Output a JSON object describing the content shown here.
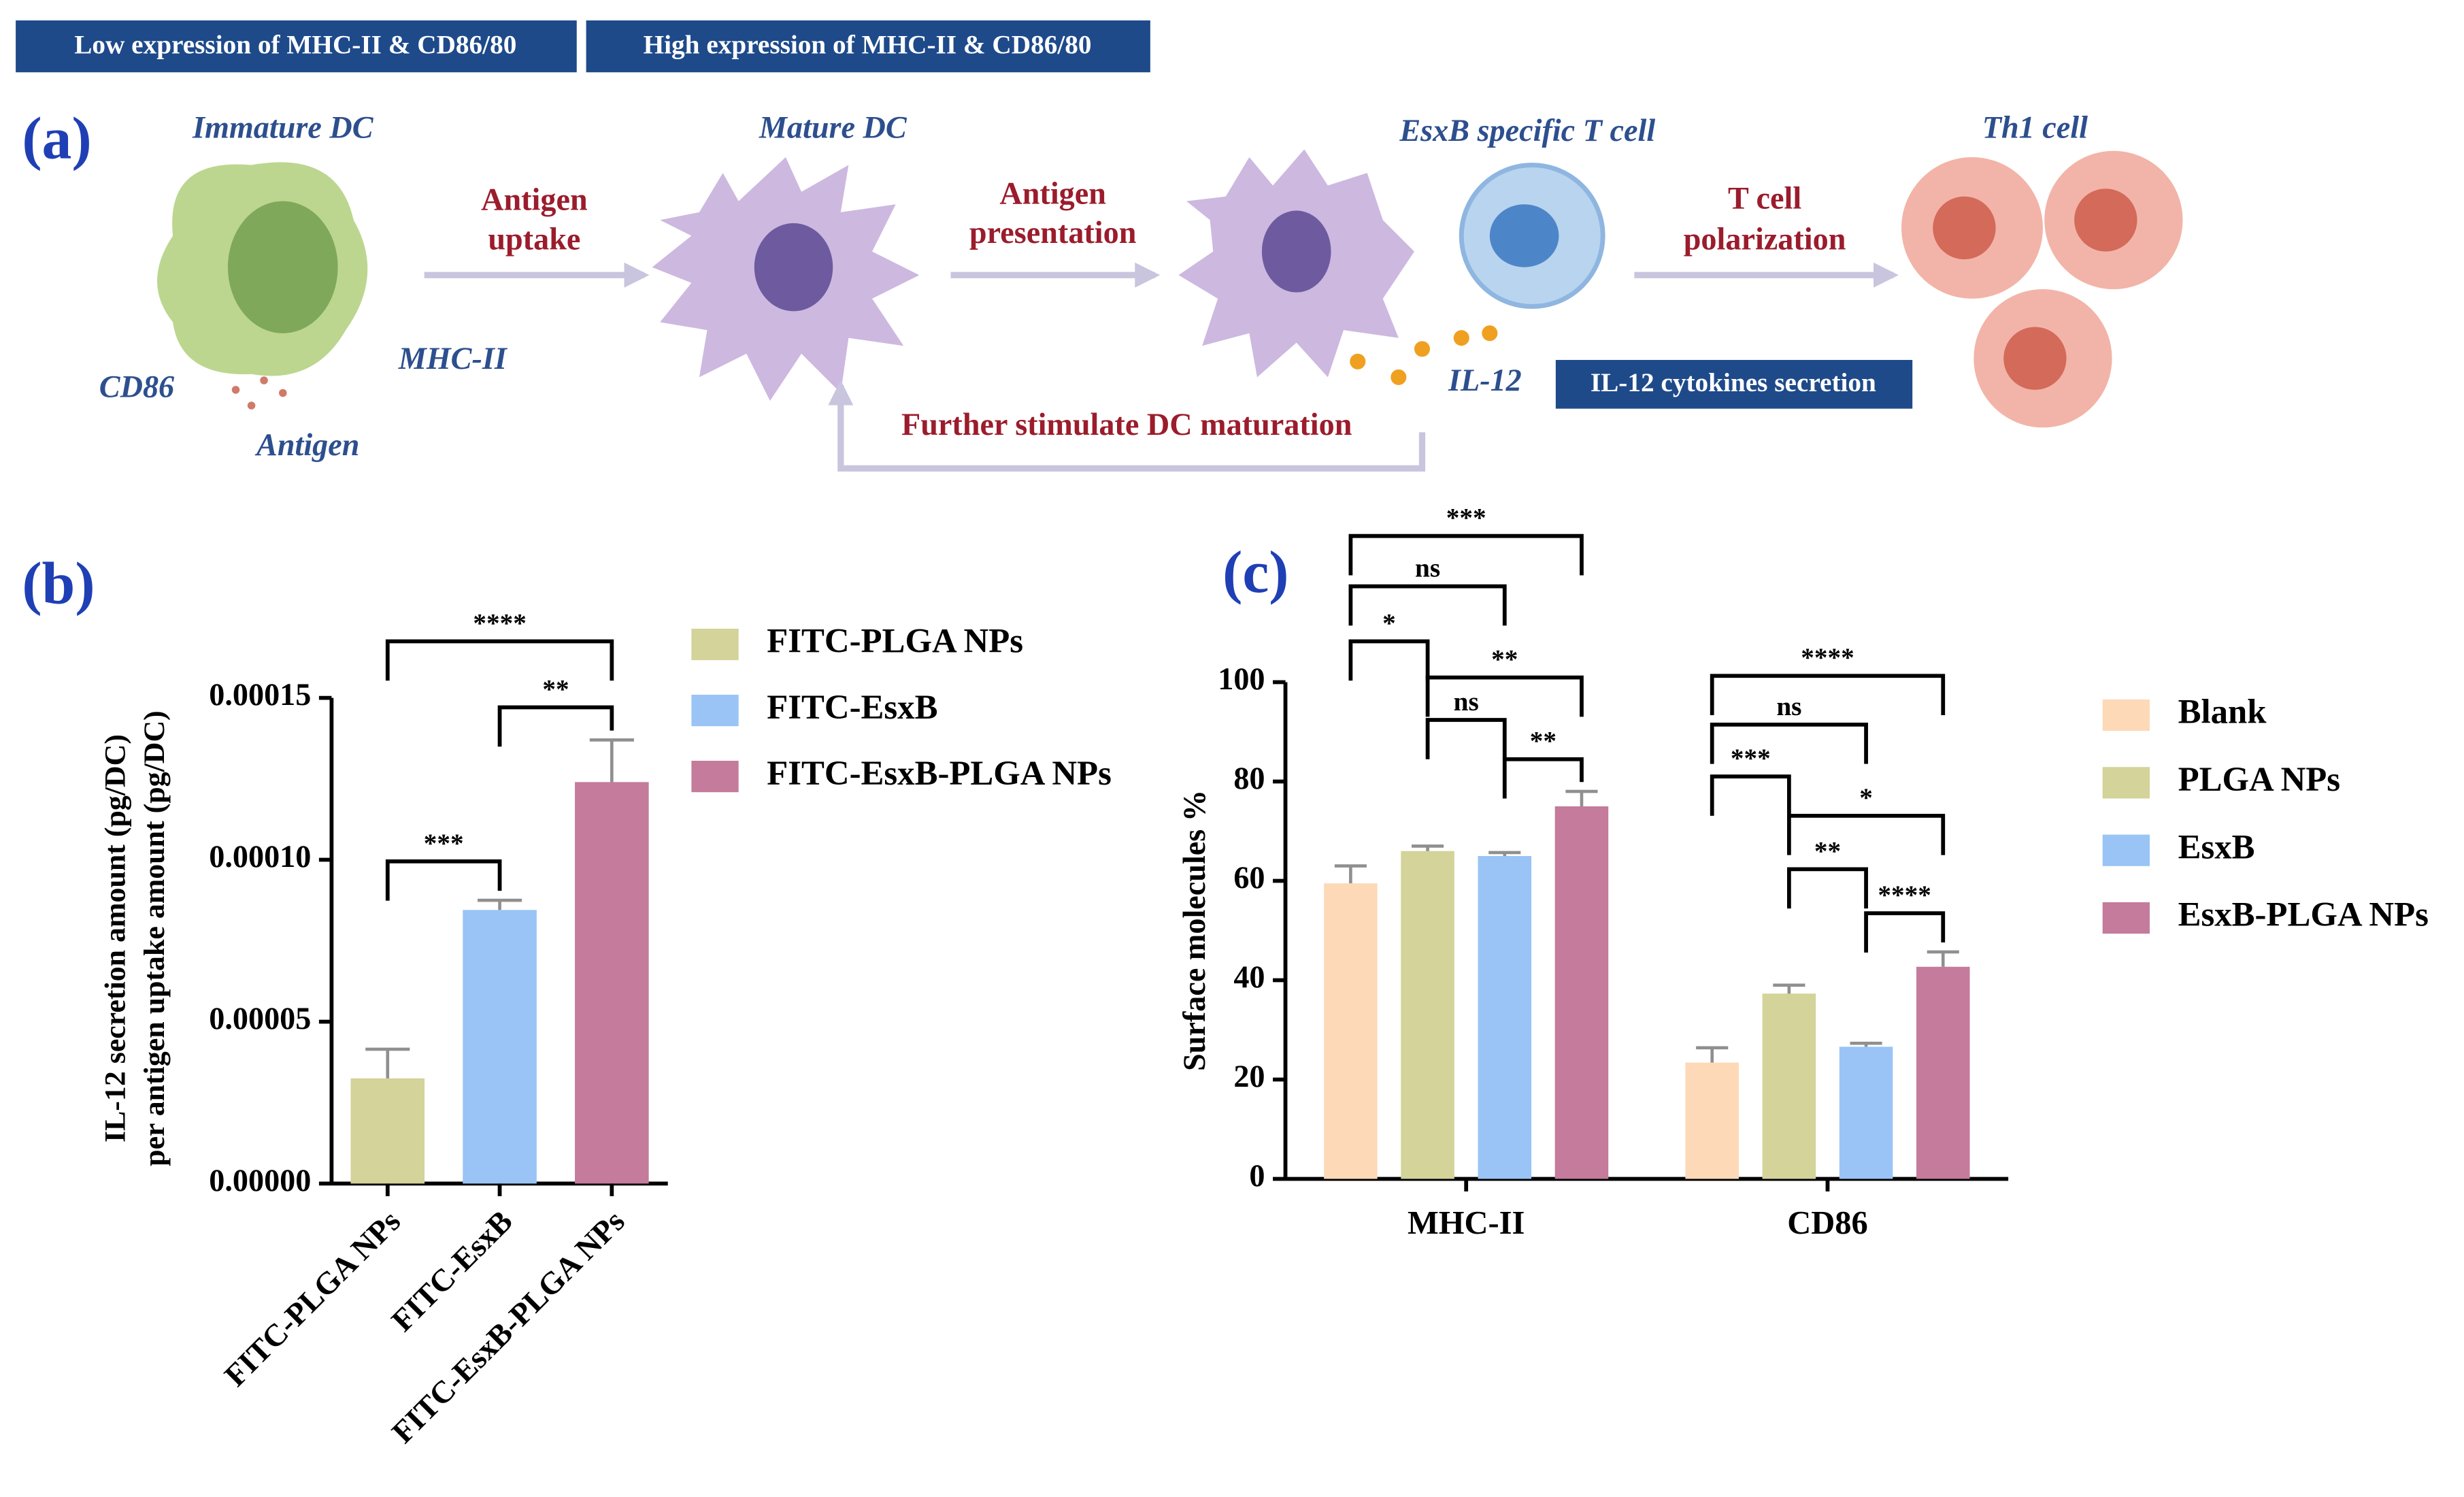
{
  "diagram": {
    "header_boxes": [
      "Low expression of  MHC-II & CD86/80",
      "High expression of  MHC-II & CD86/80"
    ],
    "panel": "(a)",
    "cells": [
      "Immature DC",
      "Mature DC",
      "EsxB specific T cell",
      "Th1 cell"
    ],
    "steps": [
      [
        "Antigen",
        "uptake"
      ],
      [
        "Antigen",
        "presentation"
      ],
      [
        "T cell",
        "polarization"
      ]
    ],
    "markers": [
      "CD86",
      "MHC-II",
      "Antigen",
      "IL-12"
    ],
    "secretion_box": "IL-12 cytokines secretion",
    "feedback": "Further stimulate DC maturation"
  },
  "chart_data": [
    {
      "type": "bar",
      "panel": "(b)",
      "ylabel": [
        "IL-12 secretion amount (pg/DC)",
        "per antigen uptake amount (pg/DC)"
      ],
      "categories": [
        "FITC-PLGA NPs",
        "FITC-EsxB",
        "FITC-EsxB-PLGA NPs"
      ],
      "values": [
        3.25e-05,
        8.45e-05,
        0.000124
      ],
      "errors": [
        9e-06,
        3e-06,
        1.3e-05
      ],
      "colors": [
        "#d3d39a",
        "#99c4f5",
        "#c47b9c"
      ],
      "ylim": [
        0,
        0.00015
      ],
      "yticks": [
        {
          "value": 0,
          "label": "0.00000"
        },
        {
          "value": 5e-05,
          "label": "0.00005"
        },
        {
          "value": 0.0001,
          "label": "0.00010"
        },
        {
          "value": 0.00015,
          "label": "0.00015"
        }
      ],
      "annotations": [
        {
          "text": "***",
          "between": [
            0,
            1
          ]
        },
        {
          "text": "**",
          "between": [
            1,
            2
          ]
        },
        {
          "text": "****",
          "between": [
            0,
            2
          ]
        }
      ]
    },
    {
      "type": "grouped_bar",
      "panel": "(c)",
      "ylabel": "Surface molecules %",
      "categories": [
        "MHC-II",
        "CD86"
      ],
      "series": [
        {
          "name": "Blank",
          "color": "#fdd9b8",
          "values": [
            59.5,
            23.4
          ],
          "errors": [
            3.5,
            3
          ]
        },
        {
          "name": "PLGA NPs",
          "color": "#d3d39a",
          "values": [
            66,
            37.3
          ],
          "errors": [
            1,
            1.7
          ]
        },
        {
          "name": "EsxB",
          "color": "#99c4f5",
          "values": [
            65,
            26.6
          ],
          "errors": [
            0.7,
            0.7
          ]
        },
        {
          "name": "EsxB-PLGA NPs",
          "color": "#c47b9c",
          "values": [
            75,
            42.7
          ],
          "errors": [
            3,
            3
          ]
        }
      ],
      "ylim": [
        0,
        100
      ],
      "yticks": [
        0,
        20,
        40,
        60,
        80,
        100
      ],
      "annotations": [
        {
          "text": "*",
          "group": 0,
          "between": [
            0,
            1
          ]
        },
        {
          "text": "ns",
          "group": 0,
          "between": [
            0,
            2
          ]
        },
        {
          "text": "***",
          "group": 0,
          "between": [
            0,
            3
          ]
        },
        {
          "text": "**",
          "group": 0,
          "between": [
            1,
            3
          ]
        },
        {
          "text": "ns",
          "group": 0,
          "between": [
            1,
            2
          ]
        },
        {
          "text": "**",
          "group": 0,
          "between": [
            2,
            3
          ]
        },
        {
          "text": "***",
          "group": 1,
          "between": [
            0,
            1
          ]
        },
        {
          "text": "ns",
          "group": 1,
          "between": [
            0,
            2
          ]
        },
        {
          "text": "****",
          "group": 1,
          "between": [
            0,
            3
          ]
        },
        {
          "text": "*",
          "group": 1,
          "between": [
            1,
            3
          ]
        },
        {
          "text": "**",
          "group": 1,
          "between": [
            1,
            2
          ]
        },
        {
          "text": "****",
          "group": 1,
          "between": [
            2,
            3
          ]
        }
      ]
    }
  ]
}
